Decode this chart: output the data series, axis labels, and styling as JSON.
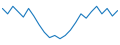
{
  "values": [
    55,
    50,
    57,
    52,
    47,
    55,
    48,
    40,
    33,
    28,
    30,
    27,
    30,
    35,
    42,
    50,
    46,
    52,
    57,
    50,
    55,
    48,
    53
  ],
  "line_color": "#1a7abf",
  "linewidth": 0.8,
  "background_color": "#ffffff",
  "ylim_min": 22,
  "ylim_max": 62
}
